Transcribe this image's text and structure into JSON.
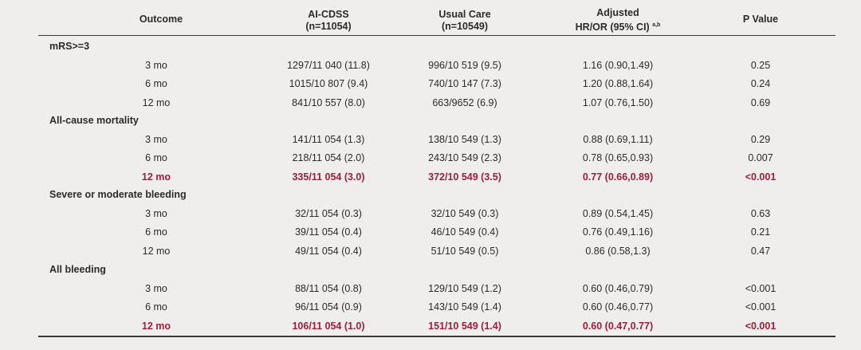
{
  "headers": {
    "outcome": "Outcome",
    "ai_cdss": "AI-CDSS",
    "ai_cdss_n": "(n=11054)",
    "usual_care": "Usual Care",
    "usual_care_n": "(n=10549)",
    "adjusted": "Adjusted",
    "hr_or": "HR/OR (95% CI)",
    "hr_or_sup": "a,b",
    "p_value": "P Value"
  },
  "groups": [
    {
      "label": "mRS>=3",
      "rows": [
        {
          "time": "3 mo",
          "ai": "1297/11 040 (11.8)",
          "uc": "996/10 519 (9.5)",
          "hr": "1.16 (0.90,1.49)",
          "p": "0.25",
          "highlight": false
        },
        {
          "time": "6 mo",
          "ai": "1015/10 807 (9.4)",
          "uc": "740/10 147 (7.3)",
          "hr": "1.20 (0.88,1.64)",
          "p": "0.24",
          "highlight": false
        },
        {
          "time": "12 mo",
          "ai": "841/10 557 (8.0)",
          "uc": "663/9652 (6.9)",
          "hr": "1.07 (0.76,1.50)",
          "p": "0.69",
          "highlight": false
        }
      ]
    },
    {
      "label": "All-cause mortality",
      "rows": [
        {
          "time": "3 mo",
          "ai": "141/11 054 (1.3)",
          "uc": "138/10 549 (1.3)",
          "hr": "0.88 (0.69,1.11)",
          "p": "0.29",
          "highlight": false
        },
        {
          "time": "6 mo",
          "ai": "218/11 054 (2.0)",
          "uc": "243/10 549 (2.3)",
          "hr": "0.78 (0.65,0.93)",
          "p": "0.007",
          "highlight": false
        },
        {
          "time": "12 mo",
          "ai": "335/11 054 (3.0)",
          "uc": "372/10 549 (3.5)",
          "hr": "0.77 (0.66,0.89)",
          "p": "<0.001",
          "highlight": true
        }
      ]
    },
    {
      "label": "Severe or moderate bleeding",
      "rows": [
        {
          "time": "3 mo",
          "ai": "32/11 054 (0.3)",
          "uc": "32/10 549 (0.3)",
          "hr": "0.89 (0.54,1.45)",
          "p": "0.63",
          "highlight": false
        },
        {
          "time": "6 mo",
          "ai": "39/11 054 (0.4)",
          "uc": "46/10 549 (0.4)",
          "hr": "0.76 (0.49,1.16)",
          "p": "0.21",
          "highlight": false
        },
        {
          "time": "12 mo",
          "ai": "49/11 054 (0.4)",
          "uc": "51/10 549 (0.5)",
          "hr": "0.86 (0.58,1.3)",
          "p": "0.47",
          "highlight": false
        }
      ]
    },
    {
      "label": "All bleeding",
      "rows": [
        {
          "time": "3 mo",
          "ai": "88/11 054 (0.8)",
          "uc": "129/10 549 (1.2)",
          "hr": "0.60 (0.46,0.79)",
          "p": "<0.001",
          "highlight": false
        },
        {
          "time": "6 mo",
          "ai": "96/11 054 (0.9)",
          "uc": "143/10 549 (1.4)",
          "hr": "0.60 (0.46,0.77)",
          "p": "<0.001",
          "highlight": false
        },
        {
          "time": "12 mo",
          "ai": "106/11 054 (1.0)",
          "uc": "151/10 549 (1.4)",
          "hr": "0.60 (0.47,0.77)",
          "p": "<0.001",
          "highlight": true
        }
      ]
    }
  ],
  "colors": {
    "highlight": "#a0203c",
    "text": "#2b2b2b",
    "background": "#efeeec"
  }
}
